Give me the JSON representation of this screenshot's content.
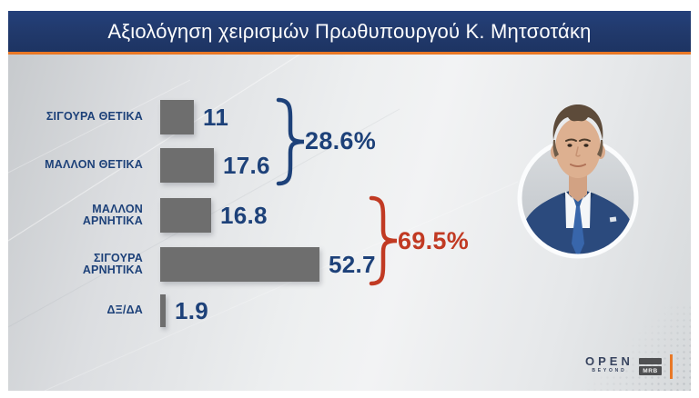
{
  "page": {
    "title": "Αξιολόγηση χειρισμών Πρωθυπουργού Κ. Μητσοτάκη"
  },
  "chart_data": {
    "type": "bar",
    "orientation": "horizontal",
    "title": "Αξιολόγηση χειρισμών Πρωθυπουργού Κ. Μητσοτάκη",
    "categories": [
      "ΣΙΓΟΥΡΑ ΘΕΤΙΚΑ",
      "ΜΑΛΛΟΝ ΘΕΤΙΚΑ",
      "ΜΑΛΛΟΝ ΑΡΝΗΤΙΚΑ",
      "ΣΙΓΟΥΡΑ ΑΡΝΗΤΙΚΑ",
      "ΔΞ/ΔΑ"
    ],
    "values": [
      11,
      17.6,
      16.8,
      52.7,
      1.9
    ],
    "xlim": [
      0,
      55
    ],
    "grid": false,
    "legend": false,
    "bar_color": "#6e6e6e",
    "groups": [
      {
        "name": "positive-total",
        "label": "28.6%",
        "categories": [
          "ΣΙΓΟΥΡΑ ΘΕΤΙΚΑ",
          "ΜΑΛΛΟΝ ΘΕΤΙΚΑ"
        ],
        "color": "#1d4179"
      },
      {
        "name": "negative-total",
        "label": "69.5%",
        "categories": [
          "ΜΑΛΛΟΝ ΑΡΝΗΤΙΚΑ",
          "ΣΙΓΟΥΡΑ ΑΡΝΗΤΙΚΑ"
        ],
        "color": "#c13a23"
      }
    ]
  },
  "footer": {
    "open_logo_text": "OPEN",
    "open_logo_tagline": "BEYOND",
    "mrb_logo_text": "MRB"
  },
  "colors": {
    "title_bar_navy": "#21396b",
    "accent_orange": "#e97826",
    "bar_gray": "#6e6e6e",
    "text_navy": "#1d4179",
    "negative_red": "#c13a23"
  }
}
